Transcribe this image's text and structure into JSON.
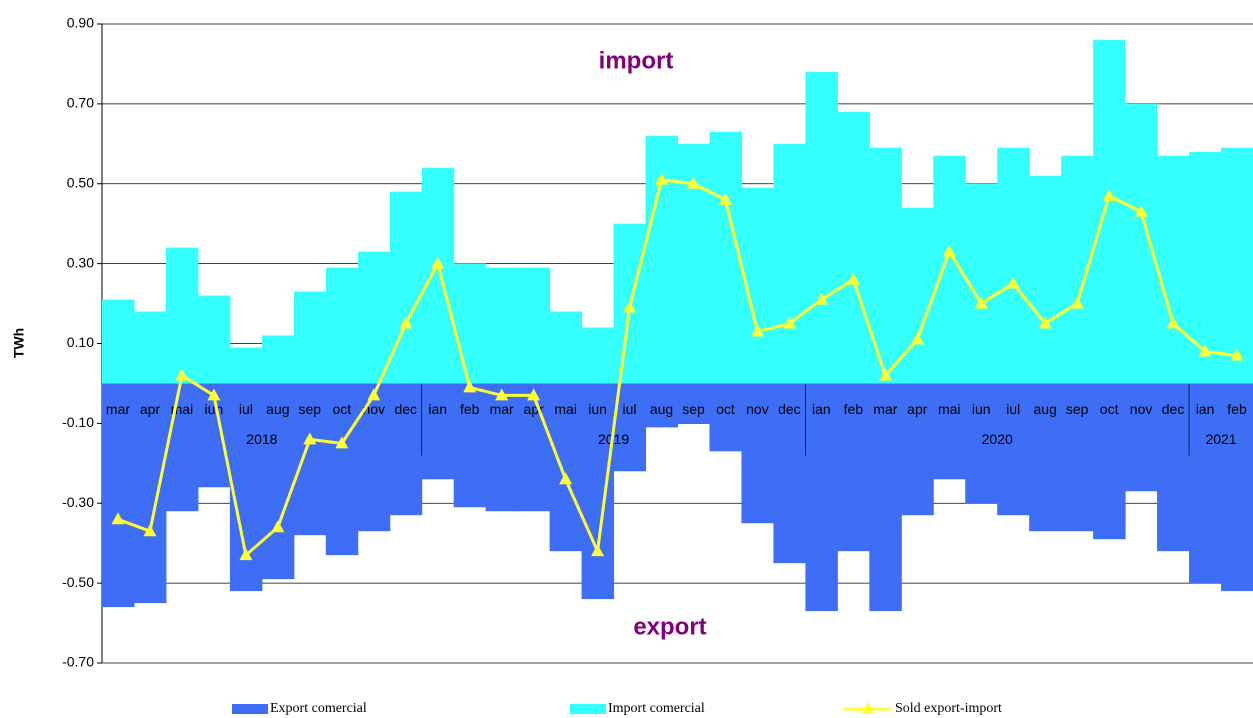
{
  "chart_data": {
    "type": "bar_line",
    "y_label": "TWh",
    "annotations": [
      "import",
      "export"
    ],
    "categories": [
      "mar",
      "apr",
      "mai",
      "iun",
      "iul",
      "aug",
      "sep",
      "oct",
      "nov",
      "dec",
      "ian",
      "feb",
      "mar",
      "apr",
      "mai",
      "iun",
      "iul",
      "aug",
      "sep",
      "oct",
      "nov",
      "dec",
      "ian",
      "feb",
      "mar",
      "apr",
      "mai",
      "iun",
      "iul",
      "aug",
      "sep",
      "oct",
      "nov",
      "dec",
      "ian",
      "feb"
    ],
    "years": [
      "2018",
      "2018",
      "2018",
      "2018",
      "2018",
      "2018",
      "2018",
      "2018",
      "2018",
      "2018",
      "2019",
      "2019",
      "2019",
      "2019",
      "2019",
      "2019",
      "2019",
      "2019",
      "2019",
      "2019",
      "2019",
      "2019",
      "2020",
      "2020",
      "2020",
      "2020",
      "2020",
      "2020",
      "2020",
      "2020",
      "2020",
      "2020",
      "2020",
      "2020",
      "2021",
      "2021"
    ],
    "series": [
      {
        "name": "Export comercial",
        "kind": "bar",
        "color": "#3d6ef5",
        "values": [
          -0.56,
          -0.55,
          -0.32,
          -0.26,
          -0.52,
          -0.49,
          -0.38,
          -0.43,
          -0.37,
          -0.33,
          -0.24,
          -0.31,
          -0.32,
          -0.32,
          -0.42,
          -0.54,
          -0.22,
          -0.11,
          -0.1,
          -0.17,
          -0.35,
          -0.45,
          -0.57,
          -0.42,
          -0.57,
          -0.33,
          -0.24,
          -0.3,
          -0.33,
          -0.37,
          -0.37,
          -0.39,
          -0.27,
          -0.42,
          -0.5,
          -0.52
        ]
      },
      {
        "name": "Import comercial",
        "kind": "bar",
        "color": "#33ffff",
        "values": [
          0.21,
          0.18,
          0.34,
          0.22,
          0.09,
          0.12,
          0.23,
          0.29,
          0.33,
          0.48,
          0.54,
          0.3,
          0.29,
          0.29,
          0.18,
          0.14,
          0.4,
          0.62,
          0.6,
          0.63,
          0.49,
          0.6,
          0.78,
          0.68,
          0.59,
          0.44,
          0.57,
          0.5,
          0.59,
          0.52,
          0.57,
          0.86,
          0.7,
          0.57,
          0.58,
          0.59
        ]
      },
      {
        "name": "Sold export-import",
        "kind": "line",
        "color": "#ffff33",
        "values": [
          -0.34,
          -0.37,
          0.02,
          -0.03,
          -0.43,
          -0.36,
          -0.14,
          -0.15,
          -0.03,
          0.15,
          0.3,
          -0.01,
          -0.03,
          -0.03,
          -0.24,
          -0.42,
          0.19,
          0.51,
          0.5,
          0.46,
          0.13,
          0.15,
          0.21,
          0.26,
          0.02,
          0.11,
          0.33,
          0.2,
          0.25,
          0.15,
          0.2,
          0.47,
          0.43,
          0.15,
          0.08,
          0.07
        ]
      }
    ],
    "ylim": [
      -0.7,
      0.9
    ],
    "yticks": [
      {
        "value": -0.7,
        "label": "-0.70"
      },
      {
        "value": -0.5,
        "label": "-0.50"
      },
      {
        "value": -0.3,
        "label": "-0.30"
      },
      {
        "value": -0.1,
        "label": "-0.10"
      },
      {
        "value": 0.1,
        "label": "0.10"
      },
      {
        "value": 0.3,
        "label": "0.30"
      },
      {
        "value": 0.5,
        "label": "0.50"
      },
      {
        "value": 0.7,
        "label": "0.70"
      },
      {
        "value": 0.9,
        "label": "0.90"
      }
    ],
    "grid": true
  }
}
